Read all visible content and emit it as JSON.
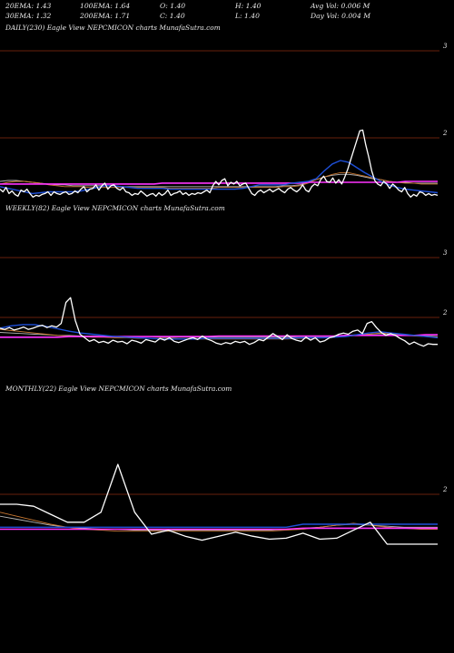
{
  "header": {
    "col1": [
      "20EMA: 1.43",
      "30EMA: 1.32"
    ],
    "col2": [
      "100EMA: 1.64",
      "200EMA: 1.71"
    ],
    "col3": [
      "O: 1.40",
      "C: 1.40"
    ],
    "col4": [
      "H: 1.40",
      "L: 1.40"
    ],
    "col5": [
      "Avg Vol: 0.006  M",
      "Day Vol: 0.004 M"
    ]
  },
  "colors": {
    "background": "#000000",
    "price": "#ffffff",
    "ema_blue": "#1e4fd8",
    "ema_magenta": "#ff33ff",
    "gridline": "#8b2a12",
    "ema_orange": "#c87832",
    "ema_gray": "#b4b4b4"
  },
  "chart_data": [
    {
      "type": "line",
      "title": "DAILY(230) Eagle   View  NEPCMICON  charts MunafaSutra.com",
      "y_labels": [
        "3",
        "2"
      ],
      "series": [
        {
          "role": "price",
          "values": [
            1.41,
            1.38,
            1.43,
            1.36,
            1.39,
            1.35,
            1.33,
            1.4,
            1.38,
            1.41,
            1.36,
            1.32,
            1.34,
            1.33,
            1.35,
            1.36,
            1.38,
            1.34,
            1.38,
            1.36,
            1.35,
            1.37,
            1.38,
            1.35,
            1.36,
            1.39,
            1.37,
            1.41,
            1.44,
            1.38,
            1.41,
            1.42,
            1.46,
            1.4,
            1.45,
            1.48,
            1.41,
            1.45,
            1.46,
            1.42,
            1.4,
            1.43,
            1.38,
            1.37,
            1.34,
            1.36,
            1.35,
            1.39,
            1.36,
            1.33,
            1.35,
            1.36,
            1.33,
            1.37,
            1.34,
            1.36,
            1.4,
            1.34,
            1.36,
            1.37,
            1.39,
            1.35,
            1.37,
            1.34,
            1.36,
            1.35,
            1.37,
            1.36,
            1.38,
            1.4,
            1.37,
            1.45,
            1.5,
            1.46,
            1.51,
            1.53,
            1.45,
            1.49,
            1.47,
            1.5,
            1.45,
            1.47,
            1.48,
            1.42,
            1.36,
            1.34,
            1.38,
            1.4,
            1.37,
            1.39,
            1.41,
            1.38,
            1.4,
            1.42,
            1.39,
            1.37,
            1.41,
            1.43,
            1.4,
            1.38,
            1.41,
            1.46,
            1.4,
            1.38,
            1.44,
            1.47,
            1.45,
            1.52,
            1.56,
            1.5,
            1.49,
            1.54,
            1.48,
            1.52,
            1.47,
            1.55,
            1.64,
            1.75,
            1.86,
            1.97,
            2.08,
            2.09,
            1.92,
            1.78,
            1.62,
            1.51,
            1.47,
            1.45,
            1.5,
            1.47,
            1.42,
            1.47,
            1.44,
            1.4,
            1.38,
            1.43,
            1.36,
            1.32,
            1.35,
            1.33,
            1.38,
            1.37,
            1.34,
            1.36,
            1.34,
            1.35,
            1.34
          ]
        },
        {
          "role": "ema_blue",
          "values": [
            1.44,
            1.42,
            1.4,
            1.38,
            1.36,
            1.37,
            1.38,
            1.38,
            1.38,
            1.38,
            1.39,
            1.41,
            1.43,
            1.45,
            1.45,
            1.44,
            1.43,
            1.42,
            1.42,
            1.42,
            1.42,
            1.41,
            1.41,
            1.41,
            1.41,
            1.41,
            1.41,
            1.41,
            1.41,
            1.41,
            1.42,
            1.44,
            1.46,
            1.46,
            1.46,
            1.46,
            1.48,
            1.49,
            1.5,
            1.53,
            1.62,
            1.7,
            1.74,
            1.72,
            1.66,
            1.6,
            1.55,
            1.5,
            1.46,
            1.43,
            1.41,
            1.4,
            1.39,
            1.38,
            1.37
          ]
        },
        {
          "role": "ema_magenta",
          "values": [
            1.47,
            1.47,
            1.47,
            1.47,
            1.47,
            1.47,
            1.47,
            1.47,
            1.47,
            1.47,
            1.47,
            1.47,
            1.47,
            1.47,
            1.47,
            1.47,
            1.47,
            1.47,
            1.47,
            1.47,
            1.48,
            1.48,
            1.48,
            1.48,
            1.48,
            1.48,
            1.48,
            1.48,
            1.48,
            1.48,
            1.48,
            1.48,
            1.48,
            1.48,
            1.48,
            1.48,
            1.48,
            1.48,
            1.49,
            1.49,
            1.49,
            1.49,
            1.49,
            1.49,
            1.49,
            1.49,
            1.49,
            1.49,
            1.49,
            1.49,
            1.5,
            1.5,
            1.5,
            1.5,
            1.5
          ]
        },
        {
          "role": "ema_orange",
          "values": [
            1.47,
            1.49,
            1.5,
            1.5,
            1.49,
            1.48,
            1.46,
            1.45,
            1.44,
            1.44,
            1.44,
            1.43,
            1.43,
            1.43,
            1.43,
            1.43,
            1.43,
            1.43,
            1.43,
            1.43,
            1.43,
            1.42,
            1.42,
            1.42,
            1.42,
            1.42,
            1.42,
            1.43,
            1.43,
            1.43,
            1.43,
            1.43,
            1.43,
            1.43,
            1.43,
            1.44,
            1.44,
            1.45,
            1.48,
            1.52,
            1.55,
            1.58,
            1.6,
            1.6,
            1.58,
            1.56,
            1.54,
            1.52,
            1.5,
            1.49,
            1.48,
            1.48,
            1.47,
            1.47,
            1.47
          ]
        },
        {
          "role": "ema_gray",
          "values": [
            1.5,
            1.51,
            1.51,
            1.5,
            1.49,
            1.48,
            1.47,
            1.46,
            1.46,
            1.45,
            1.45,
            1.45,
            1.45,
            1.45,
            1.45,
            1.44,
            1.44,
            1.44,
            1.44,
            1.44,
            1.44,
            1.44,
            1.44,
            1.44,
            1.44,
            1.44,
            1.44,
            1.44,
            1.44,
            1.44,
            1.44,
            1.44,
            1.44,
            1.44,
            1.44,
            1.45,
            1.45,
            1.46,
            1.49,
            1.52,
            1.55,
            1.57,
            1.58,
            1.58,
            1.57,
            1.55,
            1.53,
            1.52,
            1.5,
            1.49,
            1.49,
            1.48,
            1.48,
            1.48,
            1.48
          ]
        }
      ]
    },
    {
      "type": "line",
      "title": "WEEKLY(82) Eagle   View  NEPCMICON  charts MunafaSutra.com",
      "y_labels": [
        "3",
        "2"
      ],
      "series": [
        {
          "role": "price",
          "values": [
            1.82,
            1.8,
            1.83,
            1.79,
            1.81,
            1.84,
            1.8,
            1.82,
            1.85,
            1.87,
            1.83,
            1.86,
            1.84,
            1.9,
            2.25,
            2.33,
            1.95,
            1.72,
            1.66,
            1.6,
            1.63,
            1.58,
            1.6,
            1.57,
            1.62,
            1.59,
            1.6,
            1.56,
            1.62,
            1.6,
            1.57,
            1.63,
            1.61,
            1.59,
            1.65,
            1.62,
            1.66,
            1.6,
            1.58,
            1.61,
            1.64,
            1.66,
            1.63,
            1.69,
            1.64,
            1.61,
            1.57,
            1.55,
            1.58,
            1.56,
            1.6,
            1.58,
            1.6,
            1.55,
            1.58,
            1.63,
            1.61,
            1.67,
            1.73,
            1.68,
            1.63,
            1.71,
            1.65,
            1.62,
            1.6,
            1.67,
            1.62,
            1.66,
            1.59,
            1.61,
            1.66,
            1.68,
            1.72,
            1.74,
            1.72,
            1.77,
            1.79,
            1.73,
            1.9,
            1.93,
            1.83,
            1.75,
            1.7,
            1.73,
            1.7,
            1.65,
            1.61,
            1.55,
            1.59,
            1.55,
            1.52,
            1.56,
            1.55,
            1.55
          ]
        },
        {
          "role": "ema_blue",
          "values": [
            1.82,
            1.86,
            1.88,
            1.88,
            1.85,
            1.81,
            1.77,
            1.74,
            1.72,
            1.7,
            1.68,
            1.67,
            1.66,
            1.65,
            1.64,
            1.64,
            1.64,
            1.64,
            1.65,
            1.65,
            1.65,
            1.65,
            1.65,
            1.65,
            1.65,
            1.65,
            1.66,
            1.66,
            1.66,
            1.67,
            1.68,
            1.71,
            1.74,
            1.76,
            1.74,
            1.72,
            1.7,
            1.68,
            1.66
          ]
        },
        {
          "role": "ema_magenta",
          "values": [
            1.67,
            1.67,
            1.67,
            1.67,
            1.67,
            1.67,
            1.68,
            1.68,
            1.68,
            1.68,
            1.68,
            1.68,
            1.68,
            1.68,
            1.68,
            1.68,
            1.68,
            1.68,
            1.68,
            1.69,
            1.69,
            1.69,
            1.69,
            1.69,
            1.69,
            1.69,
            1.69,
            1.69,
            1.69,
            1.69,
            1.7,
            1.7,
            1.7,
            1.7,
            1.7,
            1.7,
            1.7,
            1.71,
            1.71
          ]
        },
        {
          "role": "ema_orange",
          "values": [
            1.8,
            1.78,
            1.76,
            1.74,
            1.72,
            1.7,
            1.69,
            1.68,
            1.67,
            1.67,
            1.66,
            1.66,
            1.65,
            1.65,
            1.65,
            1.65,
            1.64,
            1.64,
            1.64,
            1.64,
            1.64,
            1.64,
            1.64,
            1.64,
            1.64,
            1.64,
            1.65,
            1.65,
            1.66,
            1.67,
            1.68,
            1.7,
            1.72,
            1.74,
            1.73,
            1.71,
            1.69,
            1.68,
            1.67
          ]
        },
        {
          "role": "ema_gray",
          "values": [
            1.75,
            1.74,
            1.73,
            1.72,
            1.71,
            1.7,
            1.7,
            1.69,
            1.69,
            1.68,
            1.68,
            1.68,
            1.68,
            1.68,
            1.67,
            1.67,
            1.67,
            1.67,
            1.67,
            1.67,
            1.67,
            1.67,
            1.67,
            1.67,
            1.67,
            1.67,
            1.68,
            1.68,
            1.68,
            1.69,
            1.7,
            1.71,
            1.72,
            1.73,
            1.72,
            1.71,
            1.7,
            1.69,
            1.68
          ]
        }
      ]
    },
    {
      "type": "line",
      "title": "MONTHLY(22) Eagle   View  NEPCMICON  charts MunafaSutra.com",
      "y_labels": [
        "2"
      ],
      "series": [
        {
          "role": "price",
          "values": [
            1.9,
            1.9,
            1.88,
            1.8,
            1.72,
            1.72,
            1.82,
            2.3,
            1.82,
            1.6,
            1.64,
            1.58,
            1.54,
            1.58,
            1.62,
            1.58,
            1.55,
            1.56,
            1.61,
            1.55,
            1.56,
            1.64,
            1.72,
            1.5,
            1.5,
            1.5,
            1.5
          ]
        },
        {
          "role": "ema_blue",
          "values": [
            1.67,
            1.67,
            1.67,
            1.67,
            1.67,
            1.67,
            1.67,
            1.67,
            1.67,
            1.67,
            1.67,
            1.67,
            1.67,
            1.67,
            1.67,
            1.67,
            1.67,
            1.67,
            1.7,
            1.7,
            1.7,
            1.7,
            1.7,
            1.7,
            1.7,
            1.7,
            1.7
          ]
        },
        {
          "role": "ema_magenta",
          "values": [
            1.65,
            1.65,
            1.65,
            1.65,
            1.65,
            1.65,
            1.65,
            1.65,
            1.65,
            1.65,
            1.65,
            1.65,
            1.65,
            1.65,
            1.65,
            1.65,
            1.65,
            1.65,
            1.66,
            1.66,
            1.66,
            1.66,
            1.66,
            1.66,
            1.66,
            1.66,
            1.66
          ]
        },
        {
          "role": "ema_orange",
          "values": [
            1.82,
            1.78,
            1.74,
            1.7,
            1.67,
            1.65,
            1.64,
            1.63,
            1.63,
            1.63,
            1.63,
            1.63,
            1.63,
            1.63,
            1.63,
            1.63,
            1.63,
            1.64,
            1.65,
            1.67,
            1.69,
            1.71,
            1.69,
            1.67,
            1.66,
            1.65,
            1.65
          ]
        },
        {
          "role": "ema_gray",
          "values": [
            1.78,
            1.75,
            1.72,
            1.69,
            1.67,
            1.66,
            1.65,
            1.65,
            1.64,
            1.64,
            1.64,
            1.64,
            1.64,
            1.64,
            1.64,
            1.64,
            1.64,
            1.65,
            1.66,
            1.67,
            1.69,
            1.7,
            1.69,
            1.68,
            1.67,
            1.67,
            1.67
          ]
        }
      ]
    }
  ]
}
